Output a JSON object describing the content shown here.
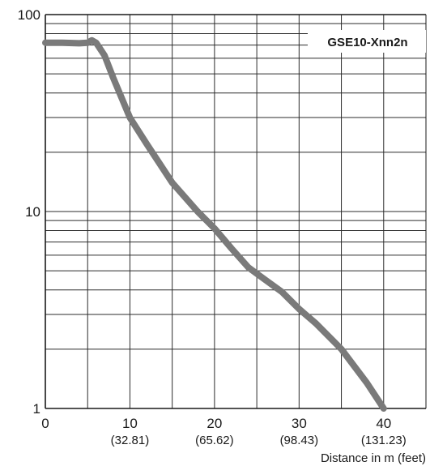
{
  "chart_data": {
    "type": "line",
    "xlabel": "Distance in m (feet)",
    "ylabel": "",
    "xlim": [
      0,
      45
    ],
    "ylim": [
      1,
      100
    ],
    "y_scale": "log",
    "grid": true,
    "x_ticks": [
      {
        "value": 0,
        "label": "0",
        "sub": ""
      },
      {
        "value": 10,
        "label": "10",
        "sub": "(32.81)"
      },
      {
        "value": 20,
        "label": "20",
        "sub": "(65.62)"
      },
      {
        "value": 30,
        "label": "30",
        "sub": "(98.43)"
      },
      {
        "value": 40,
        "label": "40",
        "sub": "(131.23)"
      }
    ],
    "y_ticks": [
      {
        "value": 1,
        "label": "1"
      },
      {
        "value": 10,
        "label": "10"
      },
      {
        "value": 100,
        "label": "100"
      }
    ],
    "series": [
      {
        "name": "GSE10-Xnn2n",
        "color": "#7a7a7a",
        "x": [
          0,
          2,
          4,
          5,
          5.5,
          6,
          7,
          8,
          10,
          12,
          15,
          18,
          20,
          22,
          24,
          26,
          28,
          30,
          32,
          35,
          38,
          40
        ],
        "y": [
          72,
          72,
          71.5,
          72,
          74,
          72,
          62,
          48,
          30,
          22,
          14,
          10,
          8.2,
          6.5,
          5.2,
          4.5,
          3.9,
          3.2,
          2.7,
          2.0,
          1.35,
          1.0
        ]
      }
    ]
  }
}
